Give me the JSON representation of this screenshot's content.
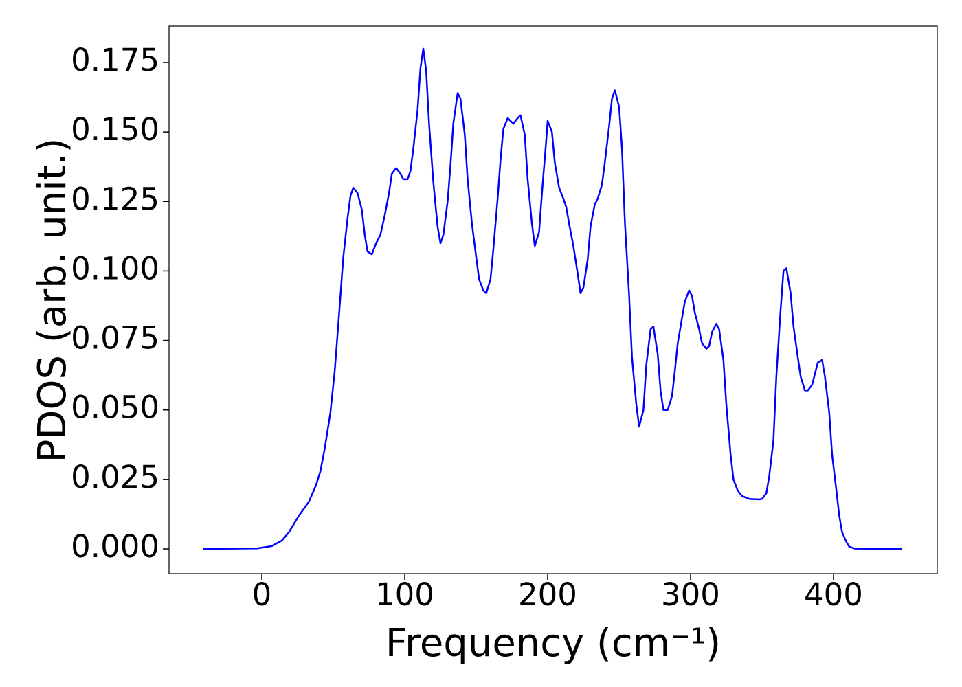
{
  "chart_data": {
    "type": "line",
    "x_label": "Frequency (cm⁻¹)",
    "y_label": "PDOS (arb. unit.)",
    "xlim": [
      -64.9,
      472.6
    ],
    "ylim": [
      -0.0089,
      0.1881
    ],
    "xticks": [
      0,
      100,
      200,
      300,
      400
    ],
    "yticks": [
      {
        "value": 0,
        "label": "0.000"
      },
      {
        "value": 0.025,
        "label": "0.025"
      },
      {
        "value": 0.05,
        "label": "0.050"
      },
      {
        "value": 0.075,
        "label": "0.075"
      },
      {
        "value": 0.1,
        "label": "0.100"
      },
      {
        "value": 0.125,
        "label": "0.125"
      },
      {
        "value": 0.15,
        "label": "0.150"
      },
      {
        "value": 0.175,
        "label": "0.175"
      }
    ],
    "series": [
      {
        "color": "#0000ff",
        "x": [
          -41,
          -3,
          7,
          14,
          19,
          26,
          33,
          38,
          41,
          44,
          48,
          51,
          54,
          57,
          60,
          62,
          64,
          67,
          70,
          72,
          74,
          77,
          80,
          83,
          86,
          89,
          91,
          94,
          97,
          99,
          102,
          104,
          106,
          109,
          111,
          113,
          115,
          117,
          120,
          123,
          125,
          127,
          130,
          132,
          134,
          137,
          139,
          142,
          144,
          147,
          150,
          152,
          155,
          157,
          160,
          162,
          165,
          167,
          169,
          172,
          174,
          176,
          179,
          181,
          184,
          186,
          189,
          191,
          194,
          196,
          199,
          200,
          203,
          205,
          208,
          211,
          213,
          215,
          218,
          221,
          223,
          225,
          228,
          230,
          233,
          235,
          238,
          240,
          243,
          245,
          247,
          250,
          252,
          254,
          257,
          259,
          262,
          264,
          267,
          269,
          272,
          274,
          277,
          279,
          281,
          284,
          287,
          289,
          291,
          294,
          296,
          299,
          301,
          303,
          306,
          308,
          311,
          313,
          315,
          318,
          320,
          323,
          325,
          328,
          330,
          333,
          336,
          341,
          348,
          350,
          353,
          355,
          358,
          360,
          363,
          365,
          367,
          370,
          372,
          375,
          377,
          380,
          382,
          385,
          387,
          389,
          392,
          394,
          397,
          399,
          402,
          404,
          406,
          409,
          411,
          415,
          448
        ],
        "values": [
          0,
          0.0002,
          0.001,
          0.003,
          0.006,
          0.012,
          0.017,
          0.023,
          0.028,
          0.036,
          0.049,
          0.064,
          0.084,
          0.105,
          0.119,
          0.127,
          0.13,
          0.128,
          0.122,
          0.113,
          0.107,
          0.106,
          0.11,
          0.113,
          0.12,
          0.128,
          0.135,
          0.137,
          0.135,
          0.133,
          0.133,
          0.136,
          0.144,
          0.158,
          0.173,
          0.18,
          0.172,
          0.153,
          0.132,
          0.116,
          0.11,
          0.113,
          0.125,
          0.138,
          0.153,
          0.164,
          0.162,
          0.149,
          0.133,
          0.117,
          0.105,
          0.097,
          0.093,
          0.092,
          0.097,
          0.108,
          0.126,
          0.14,
          0.151,
          0.155,
          0.154,
          0.153,
          0.155,
          0.156,
          0.149,
          0.133,
          0.117,
          0.109,
          0.114,
          0.128,
          0.147,
          0.154,
          0.15,
          0.139,
          0.13,
          0.126,
          0.123,
          0.117,
          0.109,
          0.099,
          0.092,
          0.094,
          0.104,
          0.116,
          0.124,
          0.126,
          0.131,
          0.139,
          0.152,
          0.162,
          0.165,
          0.159,
          0.144,
          0.118,
          0.091,
          0.069,
          0.052,
          0.044,
          0.05,
          0.066,
          0.079,
          0.08,
          0.07,
          0.057,
          0.05,
          0.05,
          0.055,
          0.064,
          0.074,
          0.083,
          0.089,
          0.093,
          0.091,
          0.085,
          0.079,
          0.074,
          0.072,
          0.073,
          0.078,
          0.081,
          0.079,
          0.068,
          0.052,
          0.034,
          0.025,
          0.021,
          0.019,
          0.018,
          0.0178,
          0.018,
          0.02,
          0.026,
          0.039,
          0.062,
          0.086,
          0.1,
          0.101,
          0.092,
          0.08,
          0.069,
          0.062,
          0.057,
          0.057,
          0.059,
          0.063,
          0.067,
          0.068,
          0.062,
          0.049,
          0.034,
          0.021,
          0.012,
          0.006,
          0.0025,
          0.0008,
          0.0001,
          0
        ]
      }
    ]
  }
}
